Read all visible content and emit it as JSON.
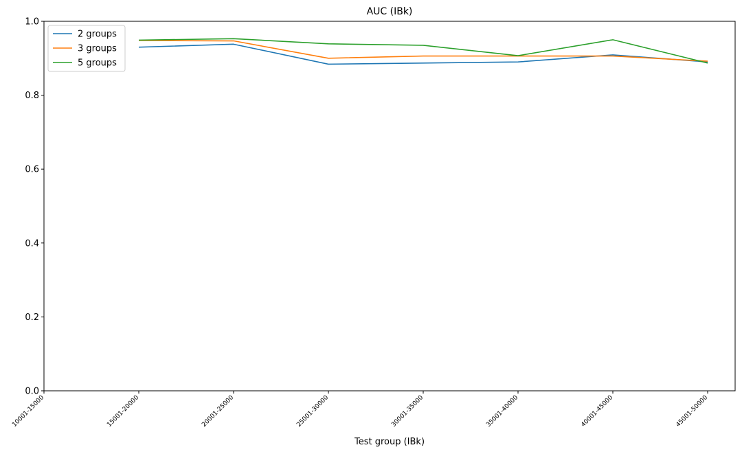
{
  "chart_data": {
    "type": "line",
    "title": "AUC (IBk)",
    "xlabel": "Test group (IBk)",
    "ylabel": "",
    "ylim": [
      0,
      1
    ],
    "yticks": [
      "0.0",
      "0.2",
      "0.4",
      "0.6",
      "0.8",
      "1.0"
    ],
    "categories": [
      "10001-15000",
      "15001-20000",
      "20001-25000",
      "25001-30000",
      "30001-35000",
      "35001-40000",
      "40001-45000",
      "45001-50000"
    ],
    "grid": false,
    "legend_position": "top-left",
    "series": [
      {
        "name": "2 groups",
        "color": "#1f77b4",
        "values": [
          null,
          0.93,
          0.938,
          0.884,
          0.887,
          0.89,
          0.909,
          0.89
        ]
      },
      {
        "name": "3 groups",
        "color": "#ff7f0e",
        "values": [
          null,
          0.948,
          0.947,
          0.9,
          0.906,
          0.906,
          0.906,
          0.892
        ]
      },
      {
        "name": "5 groups",
        "color": "#2ca02c",
        "values": [
          null,
          0.949,
          0.953,
          0.939,
          0.935,
          0.907,
          0.95,
          0.887
        ]
      }
    ]
  }
}
